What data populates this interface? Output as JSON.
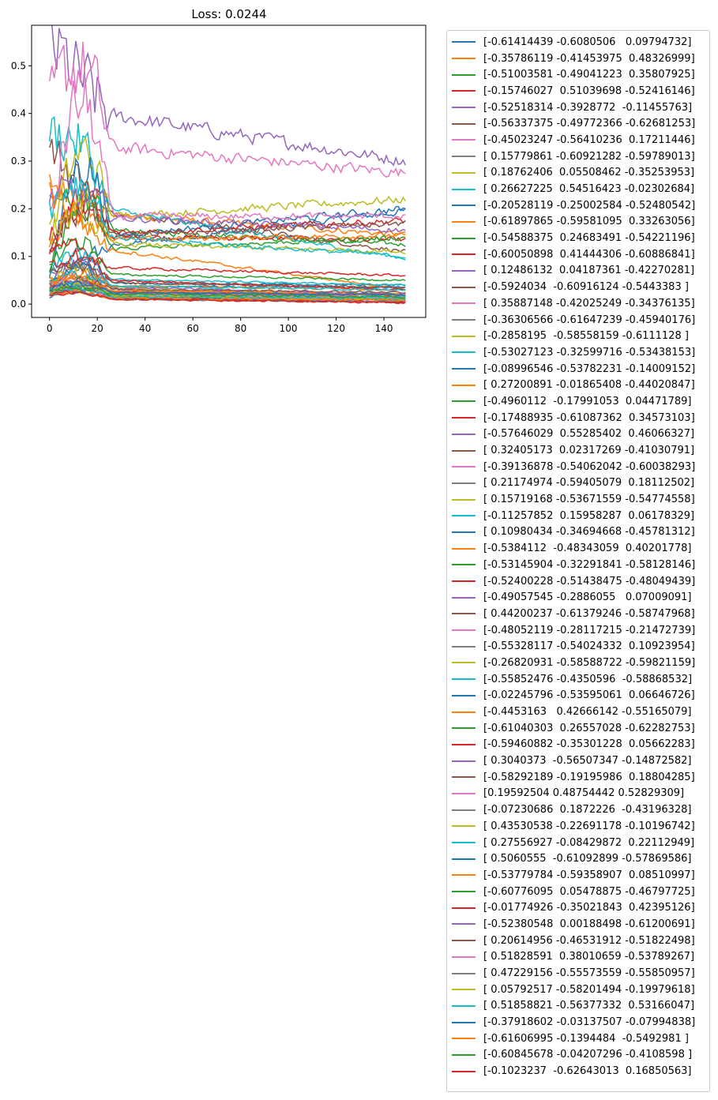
{
  "chart_data": {
    "type": "line",
    "title": "Loss: 0.0244",
    "xlabel": "",
    "ylabel": "",
    "xlim": [
      -7.5,
      157.5
    ],
    "ylim": [
      -0.028,
      0.585
    ],
    "xticks": [
      0,
      20,
      40,
      60,
      80,
      100,
      120,
      140
    ],
    "yticks": [
      0.0,
      0.1,
      0.2,
      0.3,
      0.4,
      0.5
    ],
    "ytick_labels": [
      "0.0",
      "0.1",
      "0.2",
      "0.3",
      "0.4",
      "0.5"
    ],
    "n_points": 150,
    "legend_position": "outside-right",
    "colors": [
      "#1f77b4",
      "#ff7f0e",
      "#2ca02c",
      "#d62728",
      "#9467bd",
      "#8c564b",
      "#e377c2",
      "#7f7f7f",
      "#bcbd22",
      "#17becf"
    ],
    "series": [
      {
        "name": "[-0.61414439 -0.6080506   0.09794732]",
        "start": 0.012,
        "peak": 0.03,
        "end": 0.195
      },
      {
        "name": "[-0.35786119 -0.41453975  0.48326999]",
        "start": 0.25,
        "peak": 0.28,
        "end": 0.145
      },
      {
        "name": "[-0.51003581 -0.49041223  0.35807925]",
        "start": 0.2,
        "peak": 0.25,
        "end": 0.125
      },
      {
        "name": "[-0.15746027  0.51039698 -0.52416146]",
        "start": 0.15,
        "peak": 0.2,
        "end": 0.135
      },
      {
        "name": "[-0.52518314 -0.3928772  -0.11455763]",
        "start": 0.54,
        "peak": 0.54,
        "end": 0.3
      },
      {
        "name": "[-0.56337375 -0.49772366 -0.62681253]",
        "start": 0.32,
        "peak": 0.32,
        "end": 0.11
      },
      {
        "name": "[-0.45023247 -0.56410236  0.17211446]",
        "start": 0.41,
        "peak": 0.56,
        "end": 0.275
      },
      {
        "name": "[ 0.15779861 -0.60921282 -0.59789013]",
        "start": 0.05,
        "peak": 0.1,
        "end": 0.02
      },
      {
        "name": "[ 0.18762406  0.05508462 -0.35253953]",
        "start": 0.13,
        "peak": 0.31,
        "end": 0.22
      },
      {
        "name": "[ 0.26627225  0.54516423 -0.02302684]",
        "start": 0.35,
        "peak": 0.42,
        "end": 0.095
      },
      {
        "name": "[-0.20528119 -0.25002584 -0.52480542]",
        "start": 0.06,
        "peak": 0.28,
        "end": 0.2
      },
      {
        "name": "[-0.61897865 -0.59581095  0.33263056]",
        "start": 0.12,
        "peak": 0.22,
        "end": 0.145
      },
      {
        "name": "[-0.54588375  0.24683491 -0.54221196]",
        "start": 0.08,
        "peak": 0.2,
        "end": 0.14
      },
      {
        "name": "[-0.60050898  0.41444306 -0.60886841]",
        "start": 0.11,
        "peak": 0.2,
        "end": 0.175
      },
      {
        "name": "[ 0.12486132  0.04187361 -0.42270281]",
        "start": 0.22,
        "peak": 0.25,
        "end": 0.155
      },
      {
        "name": "[-0.5924034  -0.60916124 -0.5443383 ]",
        "start": 0.1,
        "peak": 0.2,
        "end": 0.17
      },
      {
        "name": "[ 0.35887148 -0.42025249 -0.34376135]",
        "start": 0.18,
        "peak": 0.45,
        "end": 0.185
      },
      {
        "name": "[-0.36306566 -0.61647239 -0.45940176]",
        "start": 0.06,
        "peak": 0.1,
        "end": 0.01
      },
      {
        "name": "[-0.2858195  -0.58558159 -0.6111128 ]",
        "start": 0.15,
        "peak": 0.2,
        "end": 0.11
      },
      {
        "name": "[-0.53027123 -0.32599716 -0.53438153]",
        "start": 0.2,
        "peak": 0.3,
        "end": 0.1
      },
      {
        "name": "[-0.08996546 -0.53782231 -0.14009152]",
        "start": 0.05,
        "peak": 0.1,
        "end": 0.04
      },
      {
        "name": "[ 0.27200891 -0.01865408 -0.44020847]",
        "start": 0.24,
        "peak": 0.24,
        "end": 0.03
      },
      {
        "name": "[-0.4960112  -0.17991053  0.04471789]",
        "start": 0.08,
        "peak": 0.15,
        "end": 0.05
      },
      {
        "name": "[-0.17488935 -0.61087362  0.34573103]",
        "start": 0.1,
        "peak": 0.13,
        "end": 0.06
      },
      {
        "name": "[-0.57646029  0.55285402  0.46066327]",
        "start": 0.06,
        "peak": 0.1,
        "end": 0.02
      },
      {
        "name": "[ 0.32405173  0.02317269 -0.41030791]",
        "start": 0.03,
        "peak": 0.06,
        "end": 0.015
      },
      {
        "name": "[-0.39136878 -0.54062042 -0.60038293]",
        "start": 0.04,
        "peak": 0.07,
        "end": 0.02
      },
      {
        "name": "[ 0.21174974 -0.59405079  0.18112502]",
        "start": 0.03,
        "peak": 0.08,
        "end": 0.01
      },
      {
        "name": "[ 0.15719168 -0.53671559 -0.54774558]",
        "start": 0.05,
        "peak": 0.09,
        "end": 0.02
      },
      {
        "name": "[-0.11257852  0.15958287  0.06178329]",
        "start": 0.07,
        "peak": 0.12,
        "end": 0.04
      },
      {
        "name": "[ 0.10980434 -0.34694668 -0.45781312]",
        "start": 0.04,
        "peak": 0.08,
        "end": 0.035
      },
      {
        "name": "[-0.5384112  -0.48343059  0.40201778]",
        "start": 0.05,
        "peak": 0.07,
        "end": 0.03
      },
      {
        "name": "[-0.53145904 -0.32291841 -0.58128146]",
        "start": 0.03,
        "peak": 0.06,
        "end": 0.02
      },
      {
        "name": "[-0.52400228 -0.51438475 -0.48049439]",
        "start": 0.08,
        "peak": 0.12,
        "end": 0.03
      },
      {
        "name": "[-0.49057545 -0.2886055   0.07009091]",
        "start": 0.02,
        "peak": 0.05,
        "end": 0.01
      },
      {
        "name": "[ 0.44200237 -0.61379246 -0.58747968]",
        "start": 0.06,
        "peak": 0.09,
        "end": 0.035
      },
      {
        "name": "[-0.48052119 -0.28117215 -0.21472739]",
        "start": 0.04,
        "peak": 0.06,
        "end": 0.02
      },
      {
        "name": "[-0.55328117 -0.54024332  0.10923954]",
        "start": 0.02,
        "peak": 0.04,
        "end": 0.01
      },
      {
        "name": "[-0.26820931 -0.58588722 -0.59821159]",
        "start": 0.03,
        "peak": 0.05,
        "end": 0.02
      },
      {
        "name": "[-0.55852476 -0.4350596  -0.58868532]",
        "start": 0.05,
        "peak": 0.07,
        "end": 0.03
      },
      {
        "name": "[-0.02245796 -0.53595061  0.06646726]",
        "start": 0.03,
        "peak": 0.05,
        "end": 0.02
      },
      {
        "name": "[-0.4453163   0.42666142 -0.55165079]",
        "start": 0.04,
        "peak": 0.06,
        "end": 0.015
      },
      {
        "name": "[-0.61040303  0.26557028 -0.62282753]",
        "start": 0.02,
        "peak": 0.04,
        "end": 0.01
      },
      {
        "name": "[-0.59460882 -0.35301228  0.05662283]",
        "start": 0.03,
        "peak": 0.05,
        "end": 0.02
      },
      {
        "name": "[ 0.3040373  -0.56507347 -0.14872582]",
        "start": 0.02,
        "peak": 0.04,
        "end": 0.005
      },
      {
        "name": "[-0.58292189 -0.19195986  0.18804285]",
        "start": 0.04,
        "peak": 0.06,
        "end": 0.025
      },
      {
        "name": "[0.19592504 0.48754442 0.52829309]",
        "start": 0.02,
        "peak": 0.03,
        "end": 0.008
      },
      {
        "name": "[-0.07230686  0.1872226  -0.43196328]",
        "start": 0.03,
        "peak": 0.05,
        "end": 0.01
      },
      {
        "name": "[ 0.43530538 -0.22691178 -0.10196742]",
        "start": 0.02,
        "peak": 0.04,
        "end": 0.01
      },
      {
        "name": "[ 0.27556927 -0.08429872  0.22112949]",
        "start": 0.03,
        "peak": 0.05,
        "end": 0.015
      },
      {
        "name": "[ 0.5060555  -0.61092899 -0.57869586]",
        "start": 0.02,
        "peak": 0.03,
        "end": 0.005
      },
      {
        "name": "[-0.53779784 -0.59358907  0.08510997]",
        "start": 0.04,
        "peak": 0.06,
        "end": 0.02
      },
      {
        "name": "[-0.60776095  0.05478875 -0.46797725]",
        "start": 0.03,
        "peak": 0.04,
        "end": 0.01
      },
      {
        "name": "[-0.01774926 -0.35021843  0.42395126]",
        "start": 0.02,
        "peak": 0.03,
        "end": 0.003
      },
      {
        "name": "[-0.52380548  0.00188498 -0.61200691]",
        "start": 0.03,
        "peak": 0.05,
        "end": 0.02
      },
      {
        "name": "[ 0.20614956 -0.46531912 -0.51822498]",
        "start": 0.02,
        "peak": 0.04,
        "end": 0.01
      },
      {
        "name": "[ 0.51828591  0.38010659 -0.53789267]",
        "start": 0.03,
        "peak": 0.04,
        "end": 0.015
      },
      {
        "name": "[ 0.47229156 -0.55573559 -0.55850957]",
        "start": 0.02,
        "peak": 0.03,
        "end": 0.005
      },
      {
        "name": "[ 0.05792517 -0.58201494 -0.19979618]",
        "start": 0.03,
        "peak": 0.05,
        "end": 0.01
      },
      {
        "name": "[ 0.51858821 -0.56377332  0.53166047]",
        "start": 0.02,
        "peak": 0.04,
        "end": 0.012
      },
      {
        "name": "[-0.37918602 -0.03137507 -0.07994838]",
        "start": 0.03,
        "peak": 0.05,
        "end": 0.02
      },
      {
        "name": "[-0.61606995 -0.1394484  -0.5492981 ]",
        "start": 0.02,
        "peak": 0.03,
        "end": 0.008
      },
      {
        "name": "[-0.60845678 -0.04207296 -0.4108598 ]",
        "start": 0.03,
        "peak": 0.04,
        "end": 0.015
      },
      {
        "name": "[-0.1023237  -0.62643013  0.16850563]",
        "start": 0.02,
        "peak": 0.03,
        "end": 0.004
      }
    ]
  }
}
